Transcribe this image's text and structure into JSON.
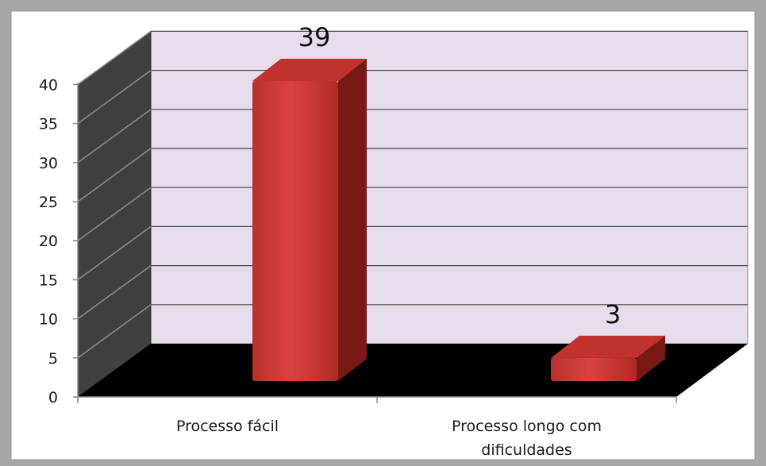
{
  "chart_data": {
    "type": "bar",
    "categories": [
      "Processo fácil",
      "Processo longo com dificuldades"
    ],
    "category_lines": [
      [
        "Processo fácil"
      ],
      [
        "Processo longo com",
        "dificuldades"
      ]
    ],
    "values": [
      39,
      3
    ],
    "data_labels": [
      "39",
      "3"
    ],
    "ylim": [
      0,
      40
    ],
    "yticks": [
      0,
      5,
      10,
      15,
      20,
      25,
      30,
      35,
      40
    ],
    "grid": true,
    "style": "3d",
    "colors": {
      "bar_front": "#cc3333",
      "bar_side": "#7a1a16",
      "bar_top": "#c0322e",
      "back_wall": "#e6dcec",
      "side_wall": "#404040",
      "floor": "#000000",
      "frame_bg": "#a6a6a6",
      "plot_bg": "#ffffff"
    }
  }
}
